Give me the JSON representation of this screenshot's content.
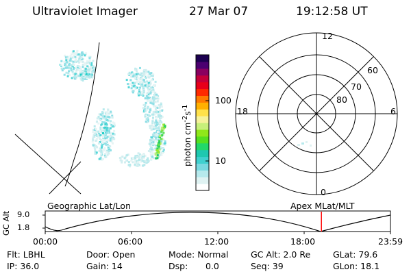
{
  "header": {
    "instrument": "Ultraviolet Imager",
    "date": "27 Mar 07",
    "time": "19:12:58 UT"
  },
  "colorbar": {
    "unit_html": "photon cm<sup>-2</sup>s<sup>-1</sup>",
    "tick_labels": [
      "10",
      "100"
    ],
    "colors": [
      "#ffffff",
      "#dff2f2",
      "#b6e9ec",
      "#79d9e0",
      "#3fd0cf",
      "#1ec8b0",
      "#22d86a",
      "#55e020",
      "#8fe81a",
      "#c7f07a",
      "#f6f29a",
      "#ffe14a",
      "#ffb000",
      "#ff7a00",
      "#ff2a00",
      "#e8001a",
      "#c4003a",
      "#8a0060",
      "#4b0070",
      "#1c0050"
    ]
  },
  "polar_plot": {
    "mlt_labels": {
      "top": "12",
      "left": "18",
      "right": "6",
      "bottom": "0"
    },
    "lat_labels": [
      "60",
      "70",
      "80"
    ]
  },
  "timeline": {
    "left_title": "Geographic Lat/Lon",
    "right_title": "Apex MLat/MLT",
    "axis_label": "GC Alt",
    "y_ticks": [
      "9.0",
      "1.8"
    ],
    "x_ticks": [
      "00:00",
      "06:00",
      "12:00",
      "18:00",
      "23:59"
    ],
    "marker_time_hours": 19.2,
    "marker_color": "#ff0000"
  },
  "info": {
    "flt": "Flt: LBHL",
    "ip": "IP: 36.0",
    "door": "Door: Open",
    "gain": "Gain: 14",
    "mode": "Mode: Normal",
    "dsp_label": "Dsp:",
    "dsp_value": "0.0",
    "gcalt": "GC Alt: 2.0 Re",
    "seq": "Seq: 39",
    "glat": "GLat: 79.6",
    "glon": "GLon: 18.1"
  }
}
